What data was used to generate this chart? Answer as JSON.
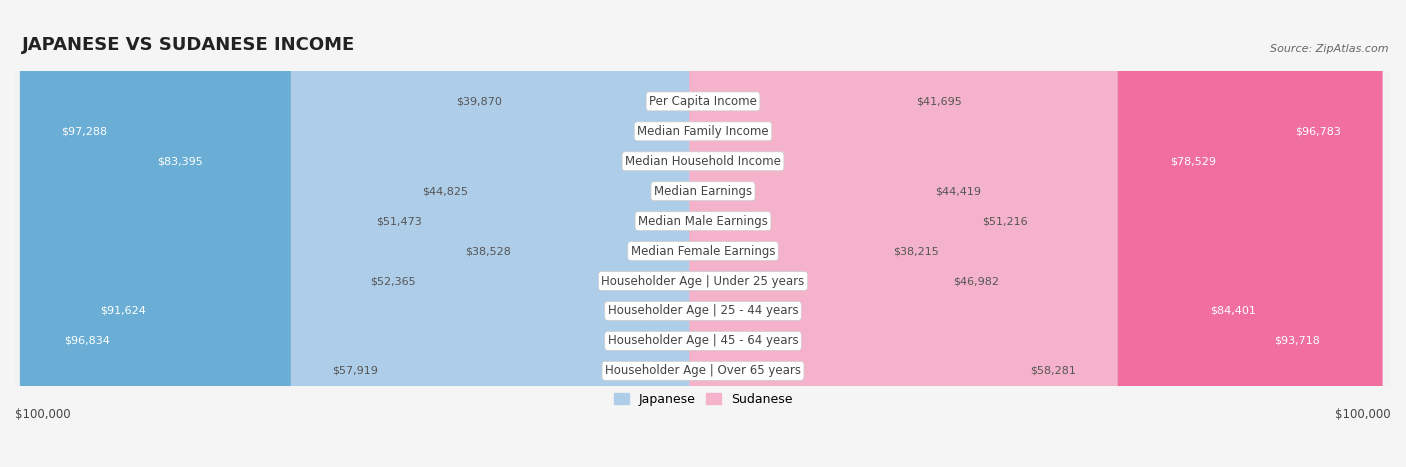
{
  "title": "JAPANESE VS SUDANESE INCOME",
  "source": "Source: ZipAtlas.com",
  "categories": [
    "Per Capita Income",
    "Median Family Income",
    "Median Household Income",
    "Median Earnings",
    "Median Male Earnings",
    "Median Female Earnings",
    "Householder Age | Under 25 years",
    "Householder Age | 25 - 44 years",
    "Householder Age | 45 - 64 years",
    "Householder Age | Over 65 years"
  ],
  "japanese_values": [
    39870,
    97288,
    83395,
    44825,
    51473,
    38528,
    52365,
    91624,
    96834,
    57919
  ],
  "sudanese_values": [
    41695,
    96783,
    78529,
    44419,
    51216,
    38215,
    46982,
    84401,
    93718,
    58281
  ],
  "max_value": 100000,
  "japanese_color_low": "#aecde8",
  "japanese_color_high": "#6aaed6",
  "sudanese_color_low": "#f4b3cb",
  "sudanese_color_high": "#f06fa0",
  "row_bg_odd": "#e8e8e8",
  "row_bg_even": "#f2f2f2",
  "fig_bg": "#f5f5f5",
  "center_label_bg": "#ffffff",
  "center_label_color": "#444444",
  "value_color_inside": "#ffffff",
  "value_color_outside": "#555555",
  "high_threshold": 60000,
  "inside_threshold": 15000,
  "xlabel_left": "$100,000",
  "xlabel_right": "$100,000",
  "legend_japanese": "Japanese",
  "legend_sudanese": "Sudanese",
  "title_fontsize": 13,
  "label_fontsize": 8.5,
  "value_fontsize": 8,
  "axis_fontsize": 8.5
}
